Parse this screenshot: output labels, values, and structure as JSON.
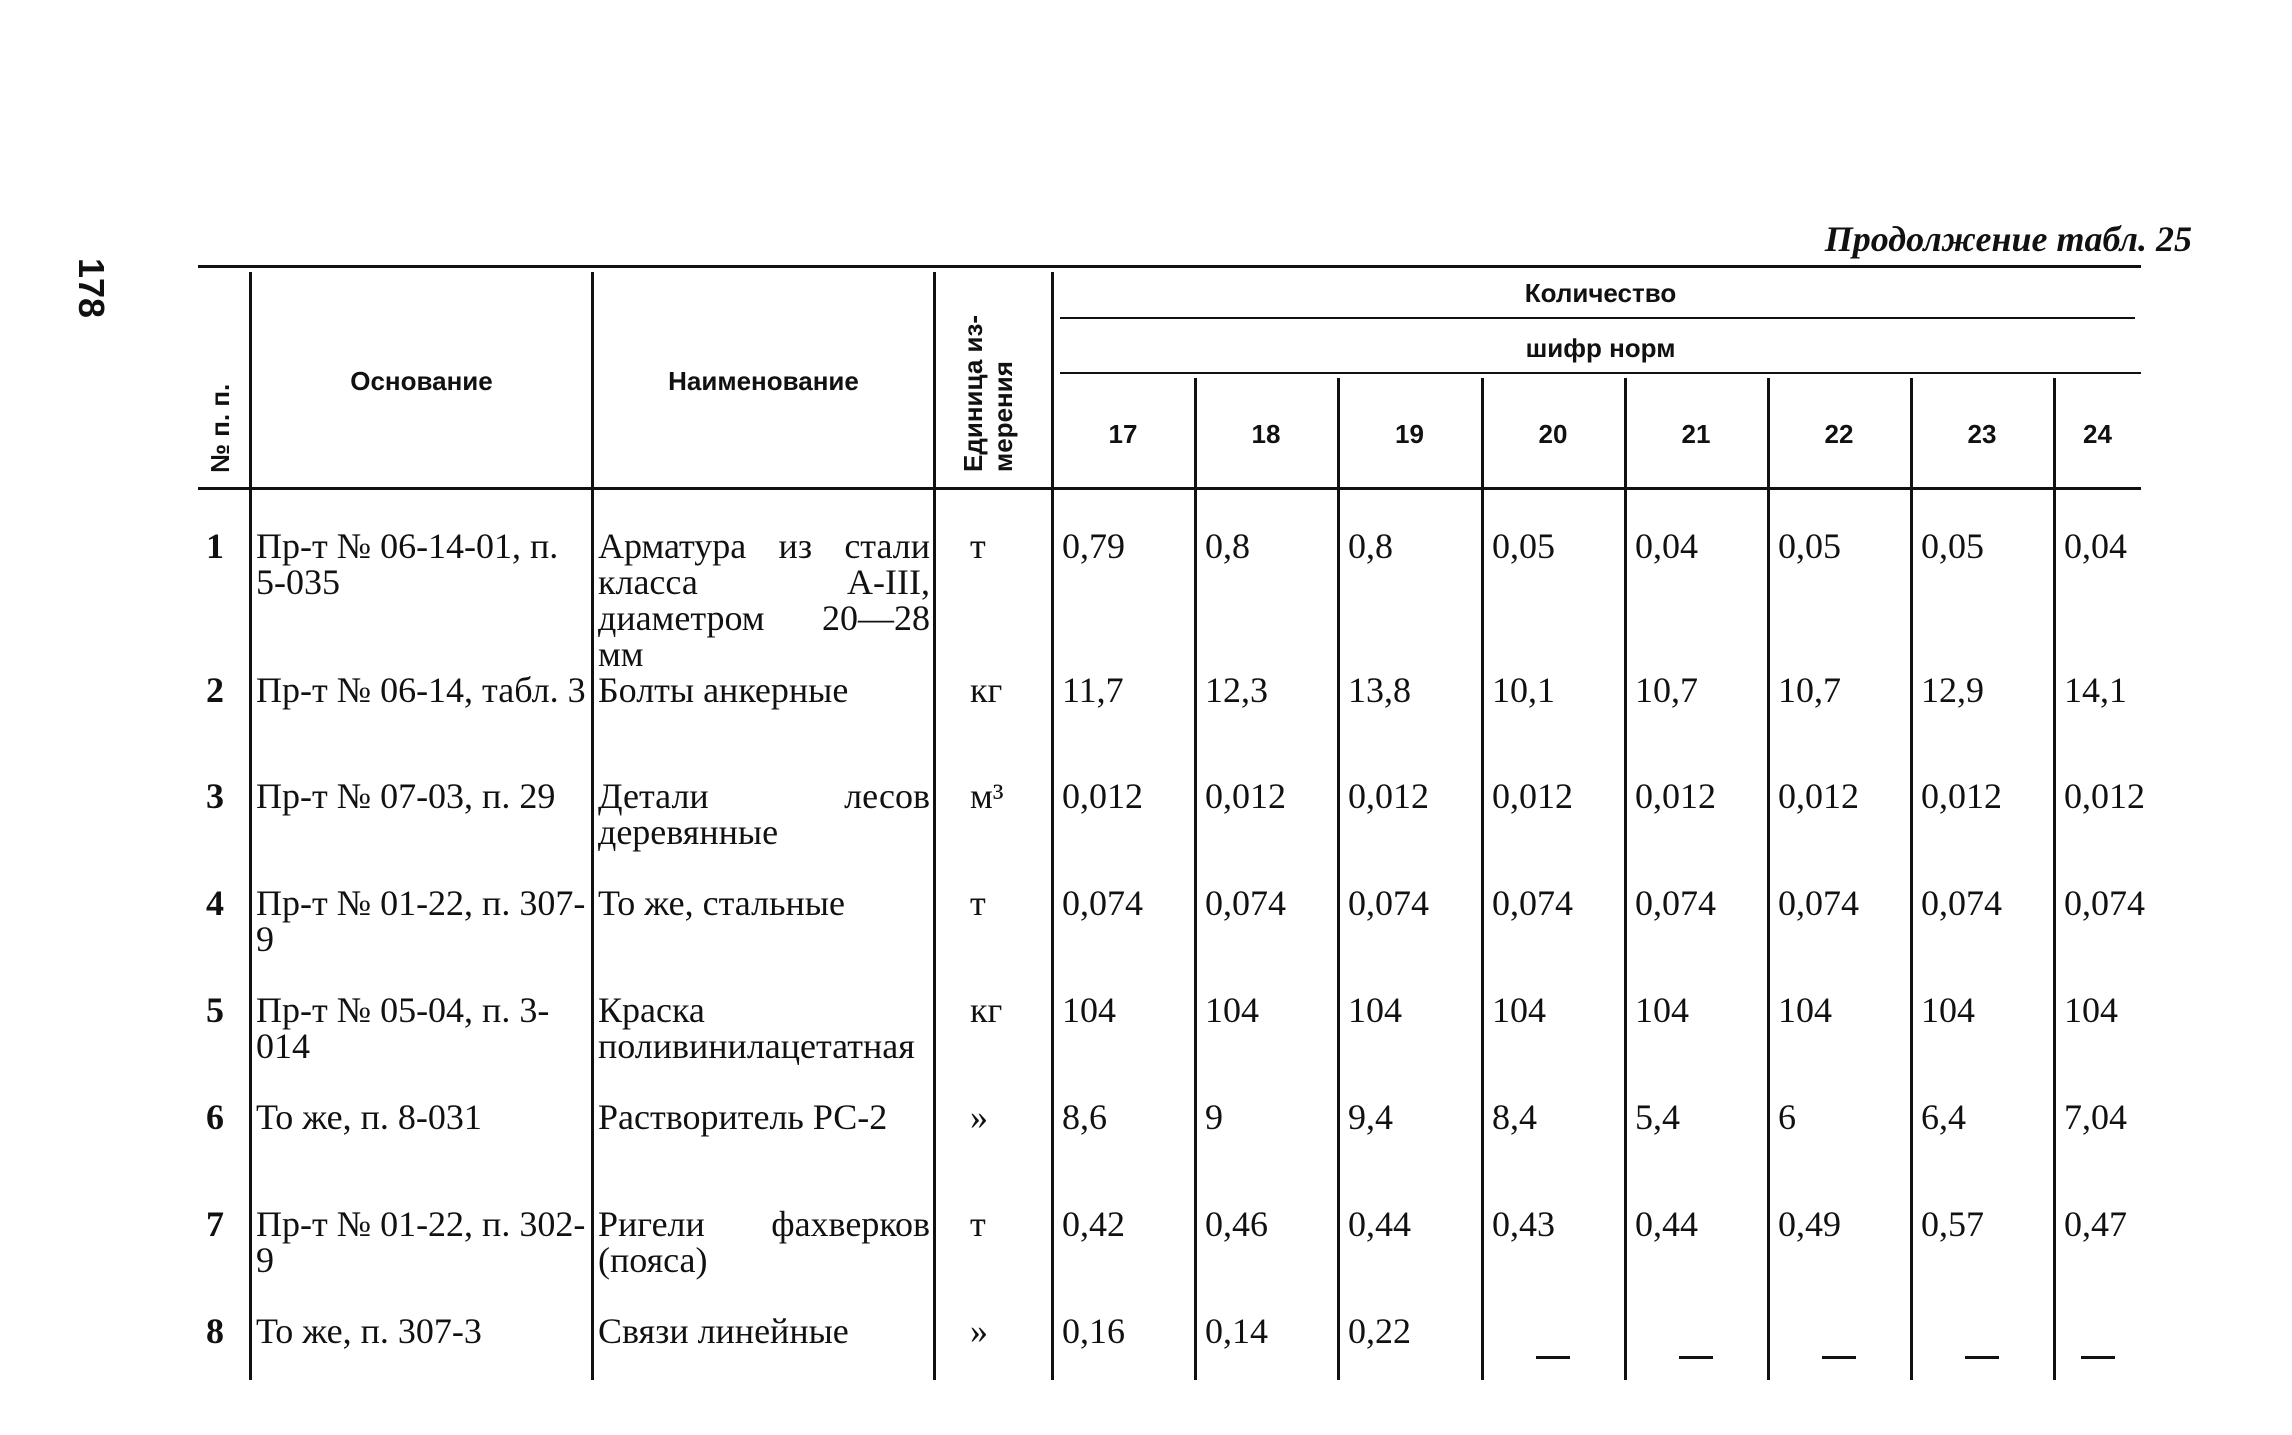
{
  "page": {
    "number": "178",
    "caption": "Продолжение табл. 25"
  },
  "table": {
    "headers": {
      "no": "№ п. п.",
      "basis": "Основание",
      "name": "Наименование",
      "unit": "Единица из-мерения",
      "quantity": "Количество",
      "cipher": "шифр норм",
      "norms": [
        "17",
        "18",
        "19",
        "20",
        "21",
        "22",
        "23",
        "24"
      ]
    },
    "rows": [
      {
        "no": "1",
        "basis": "Пр-т № 06-14-01, п. 5-035",
        "name": "Арматура из стали класса А-III, диаметром 20—28 мм",
        "unit": "т",
        "values": [
          "0,79",
          "0,8",
          "0,8",
          "0,05",
          "0,04",
          "0,05",
          "0,05",
          "0,04"
        ]
      },
      {
        "no": "2",
        "basis": "Пр-т № 06-14, табл. 3",
        "name": "Болты анкерные",
        "unit": "кг",
        "values": [
          "11,7",
          "12,3",
          "13,8",
          "10,1",
          "10,7",
          "10,7",
          "12,9",
          "14,1"
        ]
      },
      {
        "no": "3",
        "basis": "Пр-т № 07-03, п. 29",
        "name": "Детали лесов деревянные",
        "unit": "м³",
        "values": [
          "0,012",
          "0,012",
          "0,012",
          "0,012",
          "0,012",
          "0,012",
          "0,012",
          "0,012"
        ]
      },
      {
        "no": "4",
        "basis": "Пр-т № 01-22, п. 307-9",
        "name": "То же, стальные",
        "unit": "т",
        "values": [
          "0,074",
          "0,074",
          "0,074",
          "0,074",
          "0,074",
          "0,074",
          "0,074",
          "0,074"
        ]
      },
      {
        "no": "5",
        "basis": "Пр-т № 05-04, п. 3-014",
        "name": "Краска поливинилацетатная",
        "unit": "кг",
        "values": [
          "104",
          "104",
          "104",
          "104",
          "104",
          "104",
          "104",
          "104"
        ]
      },
      {
        "no": "6",
        "basis": "То же, п. 8-031",
        "name": "Растворитель РС-2",
        "unit": "»",
        "values": [
          "8,6",
          "9",
          "9,4",
          "8,4",
          "5,4",
          "6",
          "6,4",
          "7,04"
        ]
      },
      {
        "no": "7",
        "basis": "Пр-т № 01-22, п. 302-9",
        "name": "Ригели фахверков (пояса)",
        "unit": "т",
        "values": [
          "0,42",
          "0,46",
          "0,44",
          "0,43",
          "0,44",
          "0,49",
          "0,57",
          "0,47"
        ]
      },
      {
        "no": "8",
        "basis": "То же, п. 307-3",
        "name": "Связи линейные",
        "unit": "»",
        "values": [
          "0,16",
          "0,14",
          "0,22",
          "—",
          "—",
          "—",
          "—",
          "—"
        ]
      }
    ]
  }
}
